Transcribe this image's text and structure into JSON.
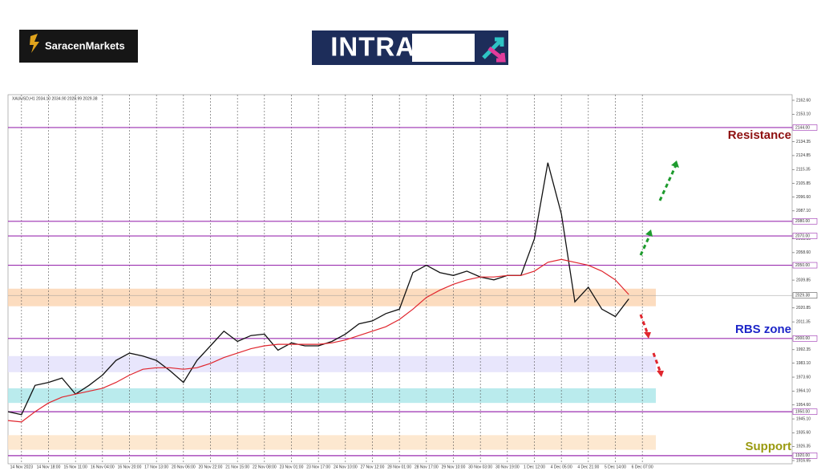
{
  "header": {
    "brand": "SaracenMarkets",
    "banner": "INTRADAY"
  },
  "chart_data": {
    "type": "line",
    "title": "XAUUSD,H1  2034.10 2034.90 2028.99 2029.38",
    "xlim": [
      0,
      116.2
    ],
    "ylim": [
      1914.46,
      2166.43
    ],
    "xticks": [
      {
        "value": 2,
        "label": "14 Nov 2023"
      },
      {
        "value": 6,
        "label": "14 Nov 18:00"
      },
      {
        "value": 10,
        "label": "15 Nov 11:00"
      },
      {
        "value": 14,
        "label": "16 Nov 04:00"
      },
      {
        "value": 18,
        "label": "16 Nov 20:00"
      },
      {
        "value": 22,
        "label": "17 Nov 13:00"
      },
      {
        "value": 26,
        "label": "20 Nov 06:00"
      },
      {
        "value": 30,
        "label": "20 Nov 22:00"
      },
      {
        "value": 34,
        "label": "21 Nov 15:00"
      },
      {
        "value": 38,
        "label": "22 Nov 08:00"
      },
      {
        "value": 42,
        "label": "23 Nov 01:00"
      },
      {
        "value": 46,
        "label": "23 Nov 17:00"
      },
      {
        "value": 50,
        "label": "24 Nov 10:00"
      },
      {
        "value": 54,
        "label": "27 Nov 12:00"
      },
      {
        "value": 58,
        "label": "28 Nov 01:00"
      },
      {
        "value": 62,
        "label": "28 Nov 17:00"
      },
      {
        "value": 66,
        "label": "29 Nov 10:00"
      },
      {
        "value": 70,
        "label": "30 Nov 03:00"
      },
      {
        "value": 74,
        "label": "30 Nov 19:00"
      },
      {
        "value": 78,
        "label": "1 Dec 12:00"
      },
      {
        "value": 82,
        "label": "4 Dec 05:00"
      },
      {
        "value": 86,
        "label": "4 Dec 21:00"
      },
      {
        "value": 90,
        "label": "5 Dec 14:00"
      },
      {
        "value": 94,
        "label": "6 Dec 07:00"
      }
    ],
    "yticks": [
      {
        "value": 2162.6,
        "label": "2162.60"
      },
      {
        "value": 2153.1,
        "label": "2153.10"
      },
      {
        "value": 2134.35,
        "label": "2134.35"
      },
      {
        "value": 2124.85,
        "label": "2124.85"
      },
      {
        "value": 2115.35,
        "label": "2115.35"
      },
      {
        "value": 2105.85,
        "label": "2105.85"
      },
      {
        "value": 2096.6,
        "label": "2096.60"
      },
      {
        "value": 2087.1,
        "label": "2087.10"
      },
      {
        "value": 2068.1,
        "label": "2068.10"
      },
      {
        "value": 2058.6,
        "label": "2058.60"
      },
      {
        "value": 2039.85,
        "label": "2039.85"
      },
      {
        "value": 2020.85,
        "label": "2020.85"
      },
      {
        "value": 2011.35,
        "label": "2011.35"
      },
      {
        "value": 1992.35,
        "label": "1992.35"
      },
      {
        "value": 1983.1,
        "label": "1983.10"
      },
      {
        "value": 1973.6,
        "label": "1973.60"
      },
      {
        "value": 1964.1,
        "label": "1964.10"
      },
      {
        "value": 1954.6,
        "label": "1954.60"
      },
      {
        "value": 1945.1,
        "label": "1945.10"
      },
      {
        "value": 1935.6,
        "label": "1935.60"
      },
      {
        "value": 1926.35,
        "label": "1926.35"
      },
      {
        "value": 1916.65,
        "label": "1916.65"
      }
    ],
    "series": [
      {
        "color": "#111111",
        "values": [
          1950,
          1948,
          1968,
          1970,
          1973,
          1962,
          1968,
          1975,
          1985,
          1990,
          1988,
          1985,
          1978,
          1970,
          1985,
          1995,
          2005,
          1998,
          2002,
          2003,
          1992,
          1997,
          1995,
          1995,
          1998,
          2003,
          2010,
          2012,
          2017,
          2020,
          2045,
          2050,
          2045,
          2043,
          2046,
          2042,
          2040,
          2043,
          2043,
          2068,
          2120,
          2085,
          2025,
          2035,
          2020,
          2015,
          2027
        ]
      },
      {
        "color": "#e0262e",
        "values": [
          1944,
          1943,
          1950,
          1956,
          1960,
          1962,
          1964,
          1966,
          1970,
          1975,
          1979,
          1980,
          1980,
          1979,
          1980,
          1983,
          1987,
          1990,
          1993,
          1995,
          1996,
          1996,
          1996,
          1996,
          1997,
          1999,
          2002,
          2005,
          2008,
          2013,
          2020,
          2028,
          2033,
          2037,
          2040,
          2042,
          2042,
          2043,
          2043,
          2046,
          2052,
          2054,
          2052,
          2050,
          2046,
          2040,
          2030
        ]
      }
    ],
    "levels": [
      {
        "value": 2144,
        "label": "2144.00"
      },
      {
        "value": 2080,
        "label": "2080.00"
      },
      {
        "value": 2070,
        "label": "2070.00"
      },
      {
        "value": 2050,
        "label": "2050.00"
      },
      {
        "value": 2000,
        "label": "2000.00"
      },
      {
        "value": 1950,
        "label": "1950.00"
      },
      {
        "value": 1920,
        "label": "1920.00"
      }
    ],
    "level_color": "#9b2fb0",
    "zones": [
      {
        "from": 2022,
        "to": 2034,
        "color": "#fbd6b4"
      },
      {
        "from": 1977,
        "to": 1988,
        "color": "#e4e2fb"
      },
      {
        "from": 1956,
        "to": 1966,
        "color": "#aee8ea"
      },
      {
        "from": 1924,
        "to": 1934,
        "color": "#fde4c8"
      }
    ],
    "last_price": {
      "value": 2029.38,
      "label": "2029.38"
    },
    "annotations": {
      "resistance": "Resistance",
      "rbs": "RBS zone",
      "support": "Support"
    }
  }
}
